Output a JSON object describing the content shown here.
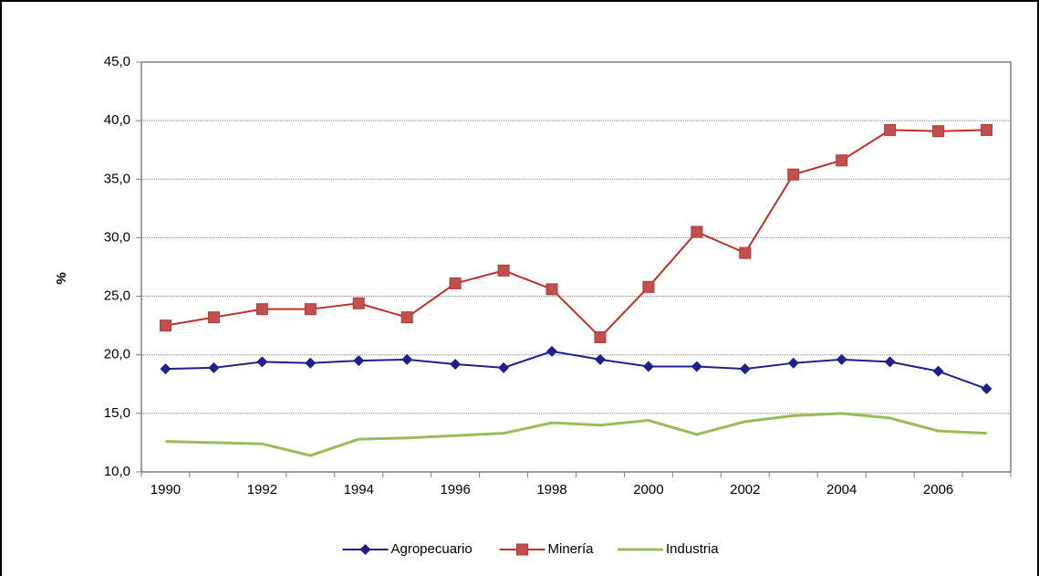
{
  "chart_data": {
    "type": "line",
    "y_label": "%",
    "categories": [
      "1990",
      null,
      "1992",
      null,
      "1994",
      null,
      "1996",
      null,
      "1998",
      null,
      "2000",
      null,
      "2002",
      null,
      "2004",
      null,
      "2006",
      null
    ],
    "series": [
      {
        "name": "Agropecuario",
        "color": "#1f1f8f",
        "marker": "diamond",
        "values": [
          18.8,
          18.9,
          19.4,
          19.3,
          19.5,
          19.6,
          19.2,
          18.9,
          20.3,
          19.6,
          19.0,
          19.0,
          18.8,
          19.3,
          19.6,
          19.4,
          18.6,
          17.1
        ]
      },
      {
        "name": "Minería",
        "color": "#c0302b",
        "marker": "square",
        "values": [
          22.5,
          23.2,
          23.9,
          23.9,
          24.4,
          23.2,
          26.1,
          27.2,
          25.6,
          21.5,
          25.8,
          30.5,
          28.7,
          35.4,
          36.6,
          39.2,
          39.1,
          39.2
        ]
      },
      {
        "name": "Industria",
        "color": "#9bbb59",
        "marker": "none",
        "values": [
          12.6,
          12.5,
          12.4,
          11.4,
          12.8,
          12.9,
          13.1,
          13.3,
          14.2,
          14.0,
          14.4,
          13.2,
          14.3,
          14.8,
          15.0,
          14.6,
          13.5,
          13.3
        ]
      }
    ],
    "ylim": [
      10,
      45
    ],
    "yticks": [
      {
        "value": 10,
        "label": "10,0"
      },
      {
        "value": 15,
        "label": "15,0"
      },
      {
        "value": 20,
        "label": "20,0"
      },
      {
        "value": 25,
        "label": "25,0"
      },
      {
        "value": 30,
        "label": "30,0"
      },
      {
        "value": 35,
        "label": "35,0"
      },
      {
        "value": 40,
        "label": "40,0"
      },
      {
        "value": 45,
        "label": "45,0"
      }
    ],
    "grid": true,
    "legend": "bottom"
  }
}
